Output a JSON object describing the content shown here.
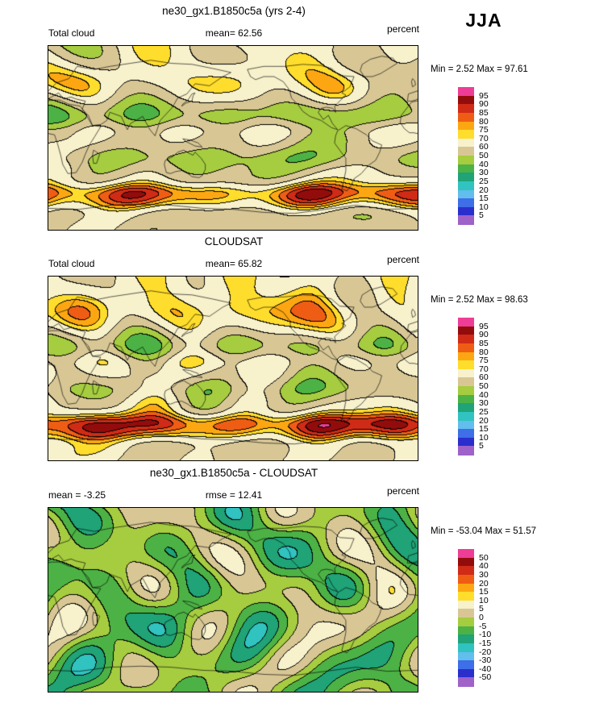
{
  "season_label": "JJA",
  "palette": [
    "#9E62C8",
    "#2A2ECC",
    "#3E6EE8",
    "#62BEEC",
    "#30C3C0",
    "#1FA377",
    "#4CB245",
    "#A6CC40",
    "#D8C795",
    "#F7F1CC",
    "#FFDD2C",
    "#FCA712",
    "#EF5D15",
    "#D02B16",
    "#930C0C",
    "#EE3D96"
  ],
  "panels": [
    {
      "id": "model",
      "title": "ne30_gx1.B1850c5a (yrs 2-4)",
      "left_label": "Total cloud",
      "center_label": "mean=  62.56",
      "units_label": "percent",
      "minmax_label": "Min =  2.52 Max =  97.61",
      "colorbar_labels": [
        "95",
        "90",
        "85",
        "80",
        "75",
        "70",
        "60",
        "50",
        "40",
        "30",
        "25",
        "20",
        "15",
        "10",
        "5"
      ]
    },
    {
      "id": "observation",
      "title": "CLOUDSAT",
      "left_label": "Total cloud",
      "center_label": "mean=  65.82",
      "units_label": "percent",
      "minmax_label": "Min =  2.52 Max =  98.63",
      "colorbar_labels": [
        "95",
        "90",
        "85",
        "80",
        "75",
        "70",
        "60",
        "50",
        "40",
        "30",
        "25",
        "20",
        "15",
        "10",
        "5"
      ]
    },
    {
      "id": "difference",
      "title": "ne30_gx1.B1850c5a - CLOUDSAT",
      "left_label": "mean =  -3.25",
      "center_label": "rmse =  12.41",
      "units_label": "percent",
      "minmax_label": "Min = -53.04 Max =  51.57",
      "colorbar_labels": [
        "50",
        "40",
        "30",
        "20",
        "15",
        "10",
        "5",
        "0",
        "-5",
        "-10",
        "-15",
        "-20",
        "-30",
        "-40",
        "-50"
      ]
    }
  ],
  "chart_data": [
    {
      "type": "heatmap",
      "panel": "model",
      "title": "ne30_gx1.B1850c5a (yrs 2-4)",
      "variable": "Total cloud",
      "season": "JJA",
      "units": "percent",
      "mean": 62.56,
      "min": 2.52,
      "max": 97.61,
      "contour_levels": [
        5,
        10,
        15,
        20,
        25,
        30,
        40,
        50,
        60,
        70,
        75,
        80,
        85,
        90,
        95
      ],
      "projection": "global-lat-lon",
      "lon_range": [
        0,
        360
      ],
      "lat_range": [
        -90,
        90
      ]
    },
    {
      "type": "heatmap",
      "panel": "observation",
      "title": "CLOUDSAT",
      "variable": "Total cloud",
      "season": "JJA",
      "units": "percent",
      "mean": 65.82,
      "min": 2.52,
      "max": 98.63,
      "contour_levels": [
        5,
        10,
        15,
        20,
        25,
        30,
        40,
        50,
        60,
        70,
        75,
        80,
        85,
        90,
        95
      ],
      "projection": "global-lat-lon",
      "lon_range": [
        0,
        360
      ],
      "lat_range": [
        -90,
        90
      ]
    },
    {
      "type": "heatmap",
      "panel": "difference",
      "title": "ne30_gx1.B1850c5a - CLOUDSAT",
      "variable": "Total cloud",
      "season": "JJA",
      "units": "percent",
      "mean": -3.25,
      "rmse": 12.41,
      "min": -53.04,
      "max": 51.57,
      "contour_levels": [
        -50,
        -40,
        -30,
        -20,
        -15,
        -10,
        -5,
        0,
        5,
        10,
        15,
        20,
        30,
        40,
        50
      ],
      "projection": "global-lat-lon",
      "lon_range": [
        0,
        360
      ],
      "lat_range": [
        -90,
        90
      ]
    }
  ]
}
